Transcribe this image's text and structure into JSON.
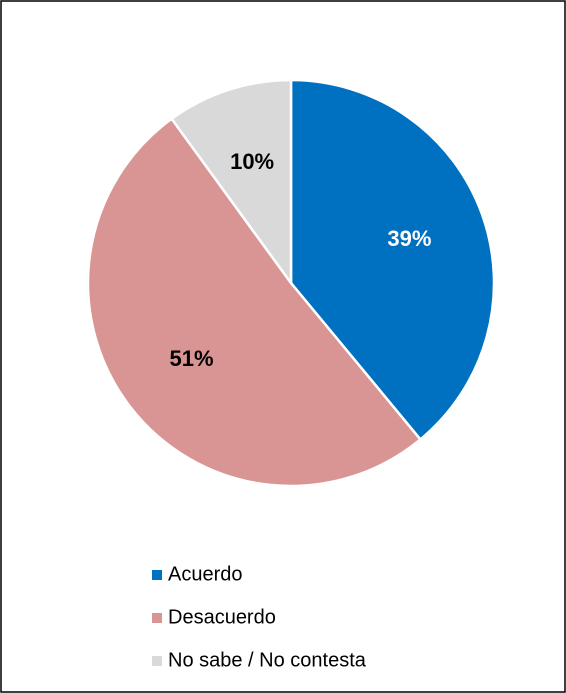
{
  "chart_data": {
    "type": "pie",
    "categories": [
      "Acuerdo",
      "Desacuerdo",
      "No sabe / No contesta"
    ],
    "values": [
      39,
      51,
      10
    ],
    "value_labels": [
      "39%",
      "51%",
      "10%"
    ],
    "colors": [
      "#0070c0",
      "#d99594",
      "#d9d9d9"
    ],
    "label_colors": [
      "#ffffff",
      "#000000",
      "#000000"
    ],
    "legend": "bottom"
  }
}
